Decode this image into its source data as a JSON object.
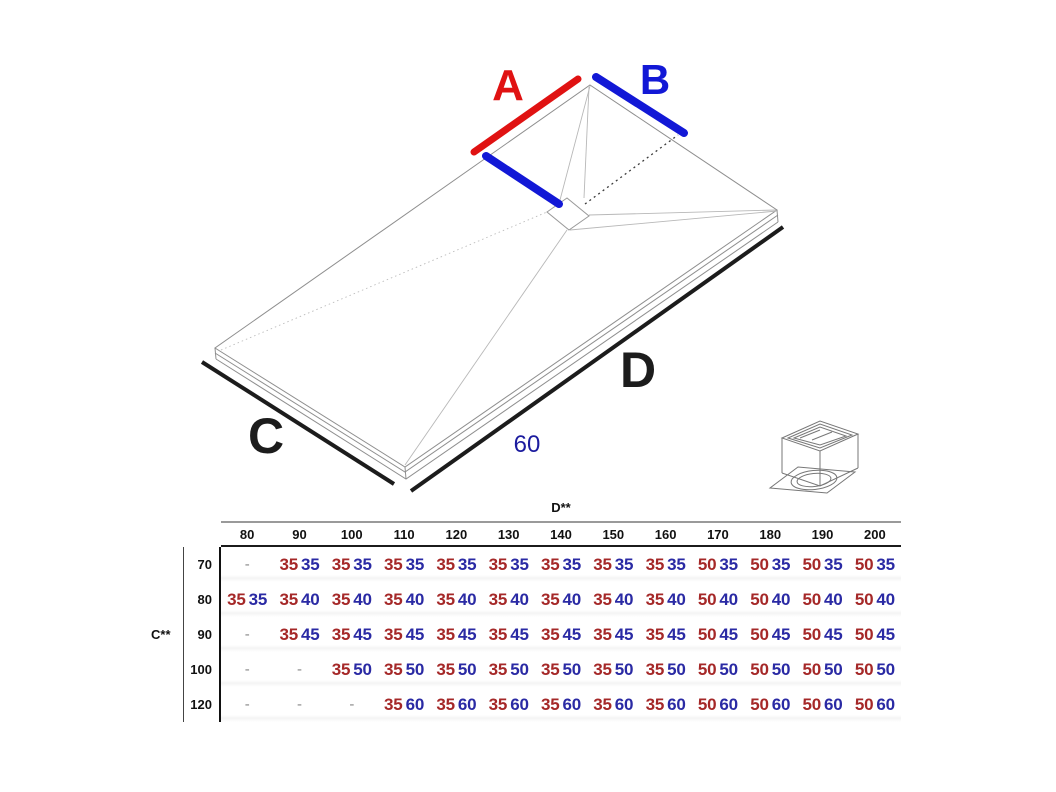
{
  "diagram": {
    "labels": {
      "a": "A",
      "b": "B",
      "c": "C",
      "d": "D"
    },
    "depth_note": "60",
    "colors": {
      "a_line": "#e01212",
      "b_line": "#1218d6",
      "c_d_line": "#1c1c1c",
      "note_text": "#1b1b9e"
    },
    "icons": {
      "drain": "drain-assembly-icon"
    }
  },
  "table": {
    "d_header": "D**",
    "c_header": "C**",
    "empty_cell": "-",
    "colors": {
      "first_value": "#a52828",
      "second_value": "#2a2aa4"
    },
    "columns": [
      "80",
      "90",
      "100",
      "110",
      "120",
      "130",
      "140",
      "150",
      "160",
      "170",
      "180",
      "190",
      "200"
    ],
    "rows": [
      {
        "label": "70",
        "cells": [
          null,
          [
            "35",
            "35"
          ],
          [
            "35",
            "35"
          ],
          [
            "35",
            "35"
          ],
          [
            "35",
            "35"
          ],
          [
            "35",
            "35"
          ],
          [
            "35",
            "35"
          ],
          [
            "35",
            "35"
          ],
          [
            "35",
            "35"
          ],
          [
            "50",
            "35"
          ],
          [
            "50",
            "35"
          ],
          [
            "50",
            "35"
          ],
          [
            "50",
            "35"
          ]
        ]
      },
      {
        "label": "80",
        "cells": [
          [
            "35",
            "35"
          ],
          [
            "35",
            "40"
          ],
          [
            "35",
            "40"
          ],
          [
            "35",
            "40"
          ],
          [
            "35",
            "40"
          ],
          [
            "35",
            "40"
          ],
          [
            "35",
            "40"
          ],
          [
            "35",
            "40"
          ],
          [
            "35",
            "40"
          ],
          [
            "50",
            "40"
          ],
          [
            "50",
            "40"
          ],
          [
            "50",
            "40"
          ],
          [
            "50",
            "40"
          ]
        ]
      },
      {
        "label": "90",
        "cells": [
          null,
          [
            "35",
            "45"
          ],
          [
            "35",
            "45"
          ],
          [
            "35",
            "45"
          ],
          [
            "35",
            "45"
          ],
          [
            "35",
            "45"
          ],
          [
            "35",
            "45"
          ],
          [
            "35",
            "45"
          ],
          [
            "35",
            "45"
          ],
          [
            "50",
            "45"
          ],
          [
            "50",
            "45"
          ],
          [
            "50",
            "45"
          ],
          [
            "50",
            "45"
          ]
        ]
      },
      {
        "label": "100",
        "cells": [
          null,
          null,
          [
            "35",
            "50"
          ],
          [
            "35",
            "50"
          ],
          [
            "35",
            "50"
          ],
          [
            "35",
            "50"
          ],
          [
            "35",
            "50"
          ],
          [
            "35",
            "50"
          ],
          [
            "35",
            "50"
          ],
          [
            "50",
            "50"
          ],
          [
            "50",
            "50"
          ],
          [
            "50",
            "50"
          ],
          [
            "50",
            "50"
          ]
        ]
      },
      {
        "label": "120",
        "cells": [
          null,
          null,
          null,
          [
            "35",
            "60"
          ],
          [
            "35",
            "60"
          ],
          [
            "35",
            "60"
          ],
          [
            "35",
            "60"
          ],
          [
            "35",
            "60"
          ],
          [
            "35",
            "60"
          ],
          [
            "50",
            "60"
          ],
          [
            "50",
            "60"
          ],
          [
            "50",
            "60"
          ],
          [
            "50",
            "60"
          ]
        ]
      }
    ]
  }
}
